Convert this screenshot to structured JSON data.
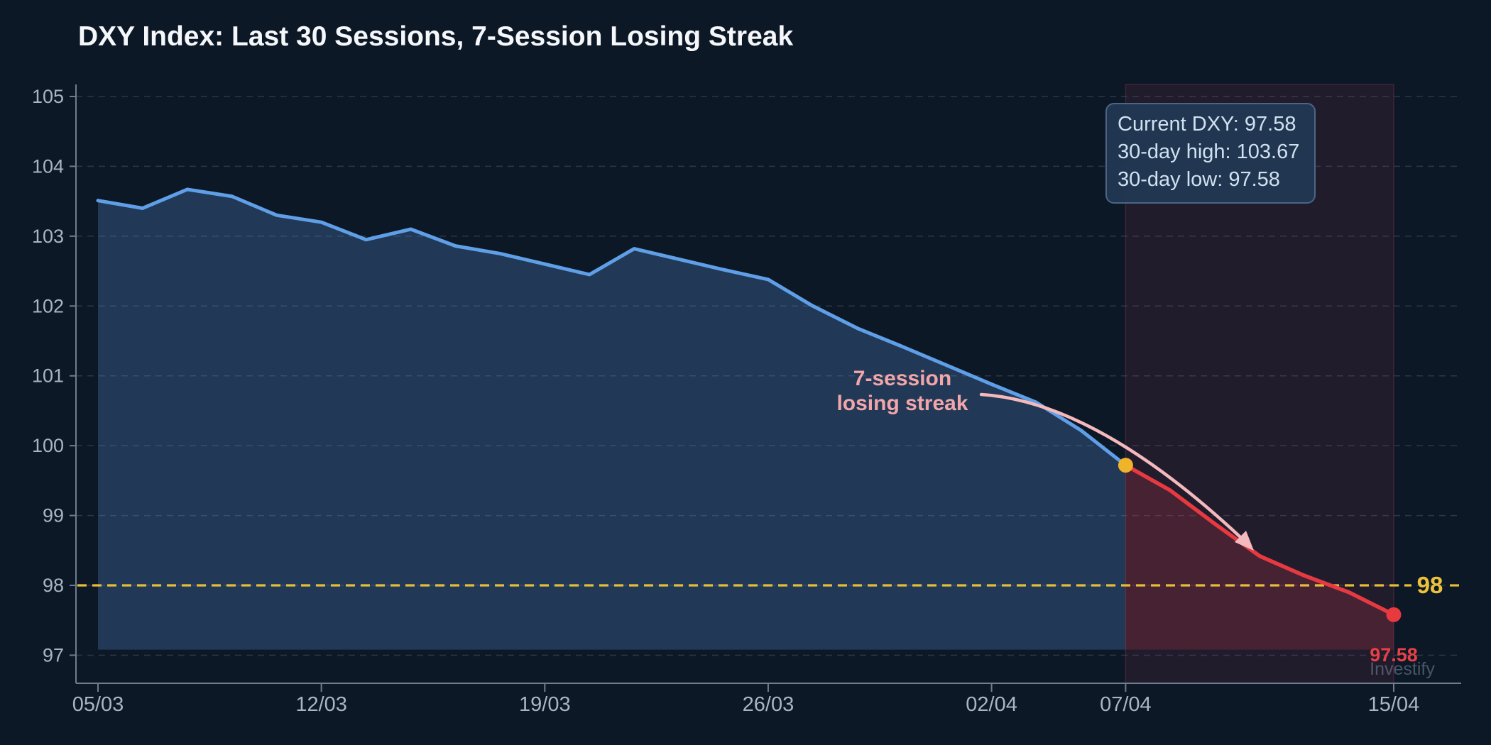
{
  "page": {
    "title": "DXY Index: Last 30 Sessions, 7-Session Losing Streak",
    "background": "#0d1826",
    "watermark": "Investify"
  },
  "tooltip": {
    "lines": [
      "Current DXY: 97.58",
      "30-day high: 103.67",
      "30-day low: 97.58"
    ]
  },
  "annotation": {
    "line1": "7-session",
    "line2": "losing streak"
  },
  "chart_data": {
    "type": "area",
    "title": "DXY Index: Last 30 Sessions, 7-Session Losing Streak",
    "xlabel": "",
    "ylabel": "",
    "x_tick_labels": [
      "05/03",
      "12/03",
      "19/03",
      "26/03",
      "02/04",
      "07/04",
      "15/04"
    ],
    "x_tick_sessions": [
      0,
      5,
      10,
      15,
      20,
      23,
      29
    ],
    "y_ticks": [
      97,
      98,
      99,
      100,
      101,
      102,
      103,
      104,
      105
    ],
    "ylim": [
      96.6,
      105.2
    ],
    "grid": "horizontal-dashed",
    "sessions": 30,
    "values": [
      103.51,
      103.4,
      103.67,
      103.57,
      103.3,
      103.2,
      102.95,
      103.1,
      102.86,
      102.75,
      102.6,
      102.45,
      102.82,
      102.67,
      102.52,
      102.38,
      102.0,
      101.68,
      101.42,
      101.15,
      100.88,
      100.62,
      100.22,
      99.72,
      99.36,
      98.88,
      98.42,
      98.14,
      97.9,
      97.58
    ],
    "streak_start_index": 23,
    "current": 97.58,
    "high_30d": 103.67,
    "low_30d": 97.58,
    "reference_line": {
      "value": 98,
      "label": "98"
    },
    "end_label": "97.58",
    "shaded_region": {
      "from_session": 23,
      "to_session": 29
    },
    "colors": {
      "line": "#5f9fe8",
      "area": "rgba(94,156,232,0.25)",
      "streak_line": "#e63a40",
      "streak_area": "rgba(229,62,80,0.20)",
      "streak_start_marker": "#f0b42a",
      "end_marker": "#e8393f",
      "region_fill": "rgba(200,60,100,0.11)",
      "region_edge": "rgba(220,80,110,0.20)",
      "reference": "#e7bd38",
      "grid": "rgba(148,166,190,0.22)",
      "axis": "#6e7d8f",
      "tick_label": "#a9b5c2",
      "annotation": "#f2a6aa",
      "arrow": "#f4b9bd",
      "end_label_color": "#e84046",
      "ref_label_color": "#edc23b",
      "watermark_color": "rgba(130,145,165,0.5)"
    }
  }
}
